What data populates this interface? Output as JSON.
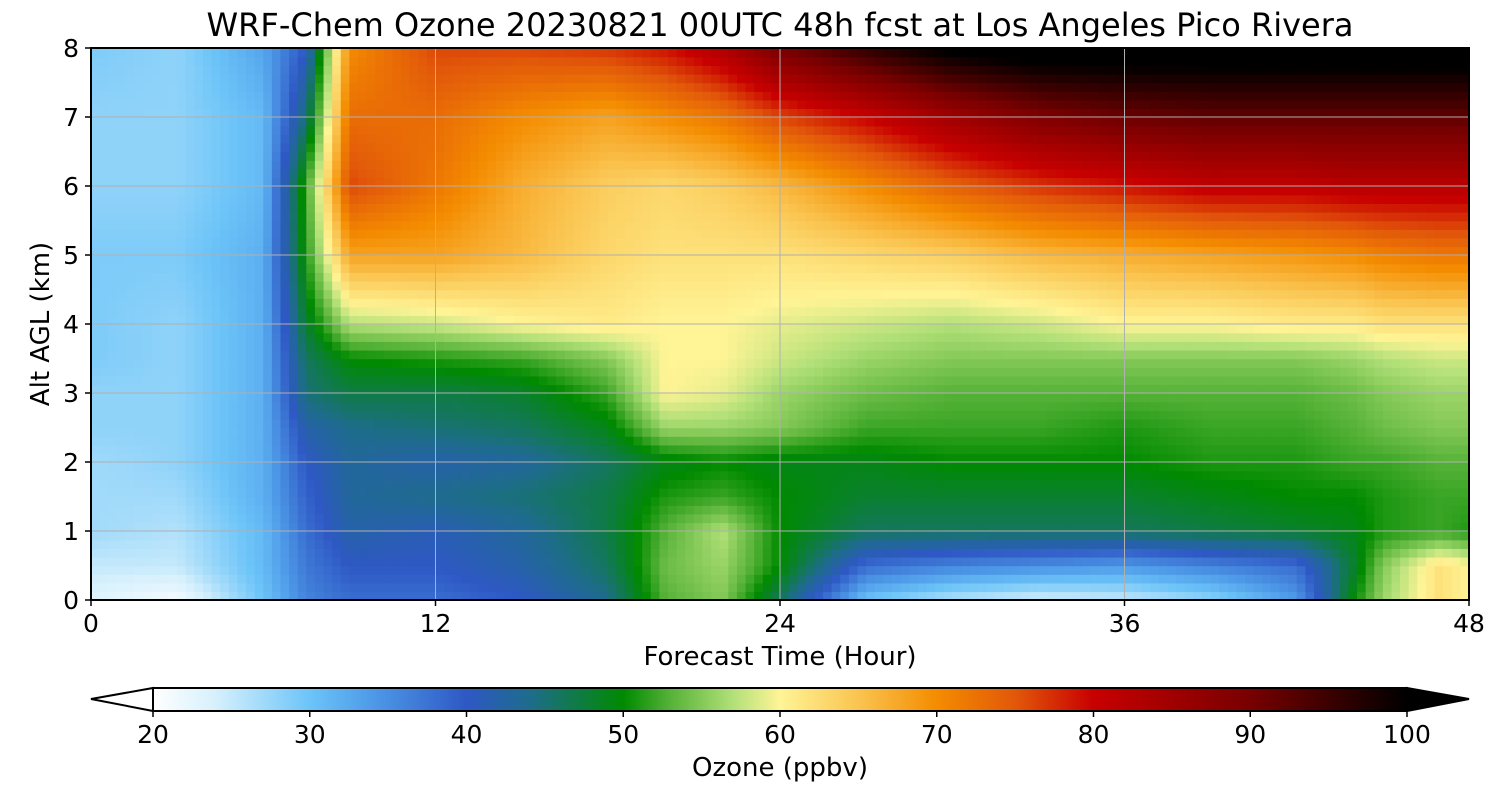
{
  "chart_data": {
    "type": "heatmap",
    "title": "WRF-Chem Ozone  20230821 00UTC 48h fcst at Los Angeles Pico Rivera",
    "xlabel": "Forecast Time (Hour)",
    "ylabel": "Alt AGL (km)",
    "xlim": [
      0,
      48
    ],
    "ylim": [
      0,
      8
    ],
    "xticks": [
      0,
      12,
      24,
      36,
      48
    ],
    "yticks": [
      0,
      1,
      2,
      3,
      4,
      5,
      6,
      7,
      8
    ],
    "grid": true,
    "colorbar": {
      "label": "Ozone  (ppbv)",
      "min": 20,
      "max": 100,
      "ticks": [
        20,
        30,
        40,
        50,
        60,
        70,
        80,
        90,
        100
      ],
      "extend": "both"
    },
    "x": [
      0,
      3,
      6,
      7.5,
      9,
      12,
      15,
      18,
      20,
      22,
      24,
      27,
      30,
      33,
      36,
      39,
      42,
      44,
      45,
      47,
      48
    ],
    "y": [
      0,
      0.5,
      1,
      1.5,
      2,
      2.5,
      3,
      3.5,
      4,
      5,
      6,
      7,
      8
    ],
    "z": [
      [
        23,
        21,
        30,
        36,
        38,
        38,
        40,
        44,
        53,
        55,
        46,
        30,
        26,
        24,
        25,
        28,
        34,
        50,
        56,
        62,
        60
      ],
      [
        25,
        25,
        31,
        37,
        40,
        40,
        42,
        46,
        54,
        56,
        50,
        38,
        36,
        35,
        34,
        36,
        38,
        48,
        55,
        62,
        60
      ],
      [
        27,
        26,
        31,
        38,
        42,
        41,
        43,
        47,
        53,
        57,
        50,
        46,
        46,
        46,
        46,
        47,
        48,
        49,
        51,
        52,
        51
      ],
      [
        27,
        27,
        32,
        39,
        43,
        44,
        45,
        47,
        51,
        52,
        50,
        48,
        48,
        48,
        48,
        49,
        50,
        50,
        51,
        52,
        52
      ],
      [
        27,
        28,
        32,
        40,
        43,
        42,
        43,
        46,
        49,
        50,
        49,
        49,
        50,
        50,
        50,
        51,
        51,
        52,
        52,
        53,
        53
      ],
      [
        28,
        28,
        32,
        42,
        44,
        45,
        46,
        49,
        56,
        56,
        55,
        52,
        52,
        52,
        51,
        52,
        52,
        53,
        54,
        55,
        55
      ],
      [
        28,
        28,
        32,
        45,
        47,
        47,
        48,
        52,
        60,
        59,
        56,
        54,
        53,
        53,
        53,
        53,
        53,
        54,
        55,
        56,
        56
      ],
      [
        29,
        28,
        32,
        46,
        50,
        51,
        52,
        55,
        60,
        60,
        58,
        56,
        55,
        55,
        55,
        55,
        55,
        56,
        57,
        58,
        58
      ],
      [
        29,
        28,
        32,
        48,
        57,
        58,
        60,
        61,
        60,
        60,
        59,
        58,
        57,
        58,
        60,
        60,
        61,
        61,
        62,
        62,
        62
      ],
      [
        29,
        29,
        32,
        51,
        68,
        68,
        66,
        63,
        62,
        62,
        62,
        63,
        64,
        66,
        67,
        68,
        69,
        70,
        71,
        72,
        72
      ],
      [
        28,
        28,
        31,
        52,
        76,
        72,
        67,
        64,
        63,
        64,
        66,
        70,
        74,
        77,
        79,
        81,
        81,
        82,
        82,
        82,
        82
      ],
      [
        28,
        28,
        31,
        45,
        73,
        73,
        70,
        68,
        70,
        72,
        76,
        80,
        85,
        89,
        91,
        92,
        92,
        92,
        92,
        92,
        92
      ],
      [
        29,
        28,
        33,
        40,
        70,
        76,
        76,
        77,
        79,
        83,
        90,
        96,
        101,
        103,
        103,
        103,
        103,
        103,
        103,
        103,
        103
      ]
    ]
  }
}
